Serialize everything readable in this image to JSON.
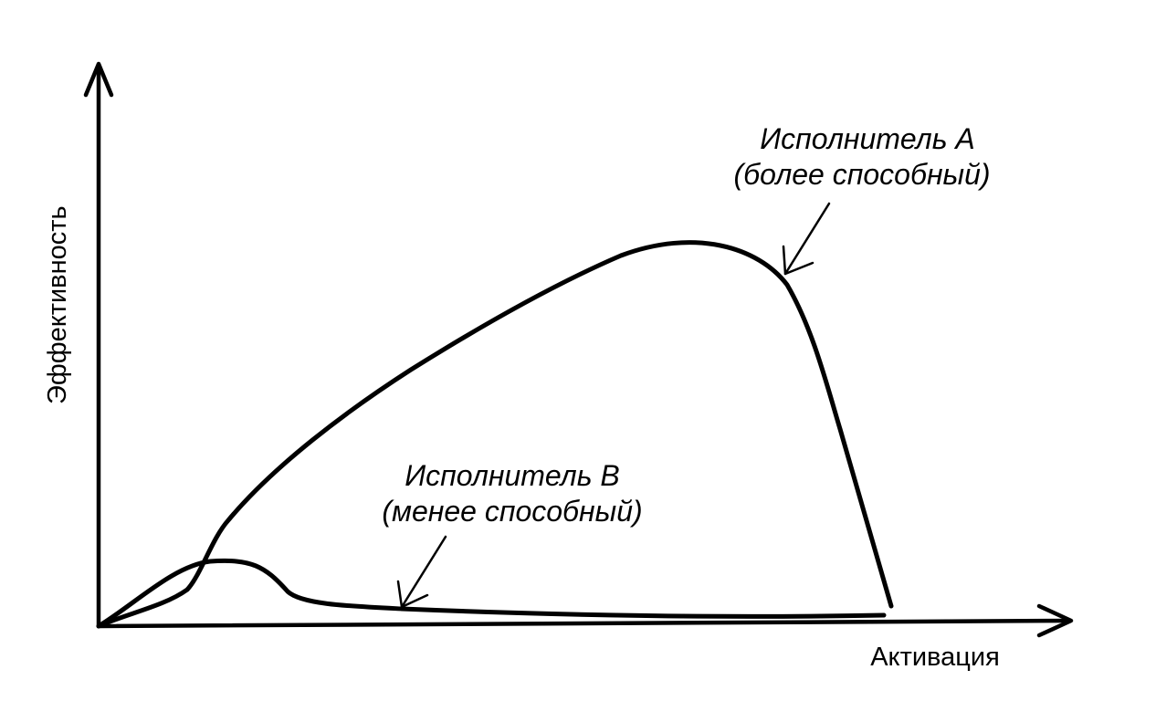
{
  "axes": {
    "y_label": "Эффективность",
    "x_label": "Активация"
  },
  "series": [
    {
      "name": "Исполнитель A",
      "note": "(более способный)"
    },
    {
      "name": "Исполнитель B",
      "note": "(менее способный)"
    }
  ],
  "colors": {
    "line": "#000000",
    "background": "#ffffff"
  }
}
